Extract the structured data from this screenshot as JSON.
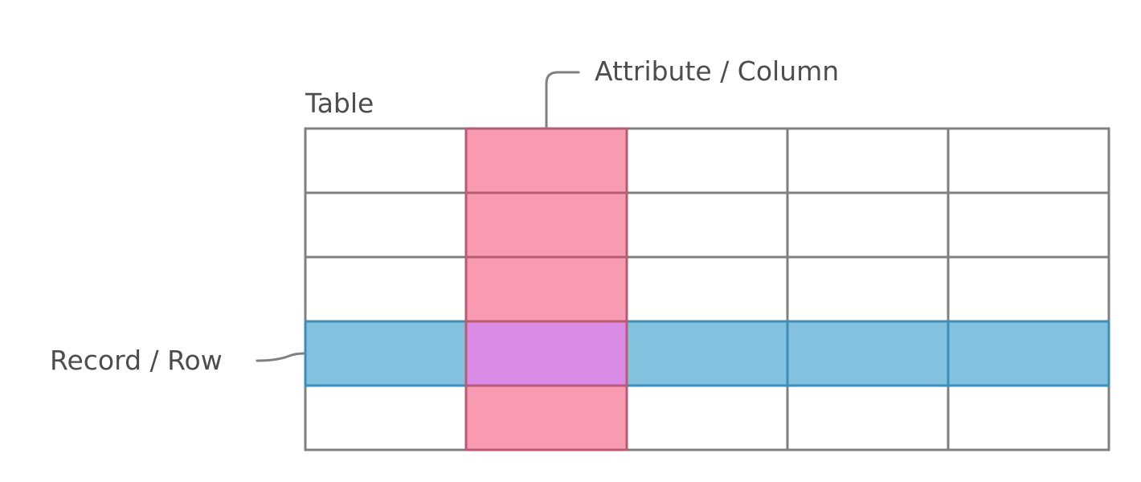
{
  "labels": {
    "table": "Table",
    "column": "Attribute / Column",
    "row": "Record / Row"
  },
  "grid": {
    "rows": 5,
    "columns": 5,
    "highlighted_column_number": 2,
    "highlighted_row_number": 4
  },
  "colors": {
    "cell": "#ffffff",
    "grid_line": "#808080",
    "column_fill": "#f99bb2",
    "column_line": "#b85b73",
    "row_fill": "#83c2de",
    "row_line": "#3c8fb8",
    "intersection_fill": "#d98be6",
    "text": "#4d4d4d"
  }
}
